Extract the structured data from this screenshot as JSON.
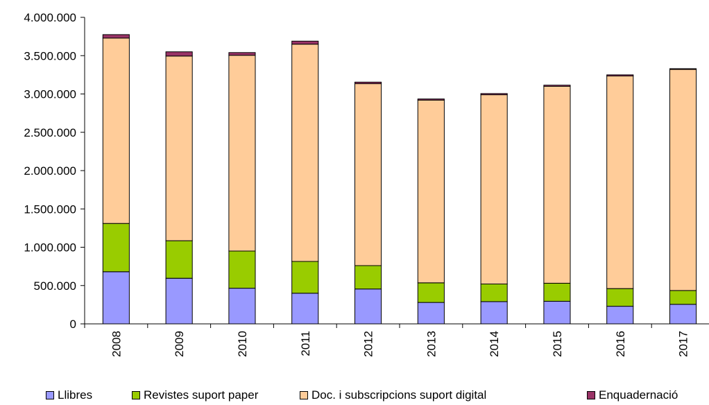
{
  "chart_data": {
    "type": "bar",
    "stacked": true,
    "categories": [
      "2008",
      "2009",
      "2010",
      "2011",
      "2012",
      "2013",
      "2014",
      "2015",
      "2016",
      "2017"
    ],
    "series": [
      {
        "name": "Llibres",
        "color": "#9999ff",
        "values": [
          680000,
          595000,
          465000,
          400000,
          455000,
          280000,
          290000,
          295000,
          230000,
          255000
        ]
      },
      {
        "name": "Revistes suport paper",
        "color": "#99cc00",
        "values": [
          630000,
          490000,
          485000,
          415000,
          305000,
          255000,
          230000,
          235000,
          230000,
          180000
        ]
      },
      {
        "name": "Doc. i subscripcions suport digital",
        "color": "#ffcc99",
        "values": [
          2420000,
          2410000,
          2555000,
          2835000,
          2375000,
          2385000,
          2470000,
          2570000,
          2775000,
          2885000
        ]
      },
      {
        "name": "Enquadernació",
        "color": "#993366",
        "values": [
          45000,
          55000,
          35000,
          40000,
          20000,
          15000,
          15000,
          15000,
          15000,
          10000
        ]
      }
    ],
    "ylim": [
      0,
      4000000
    ],
    "yticks": [
      "0",
      "500.000",
      "1.000.000",
      "1.500.000",
      "2.000.000",
      "2.500.000",
      "3.000.000",
      "3.500.000",
      "4.000.000"
    ],
    "ytick_values": [
      0,
      500000,
      1000000,
      1500000,
      2000000,
      2500000,
      3000000,
      3500000,
      4000000
    ],
    "legend_position": "bottom",
    "grid": false
  }
}
